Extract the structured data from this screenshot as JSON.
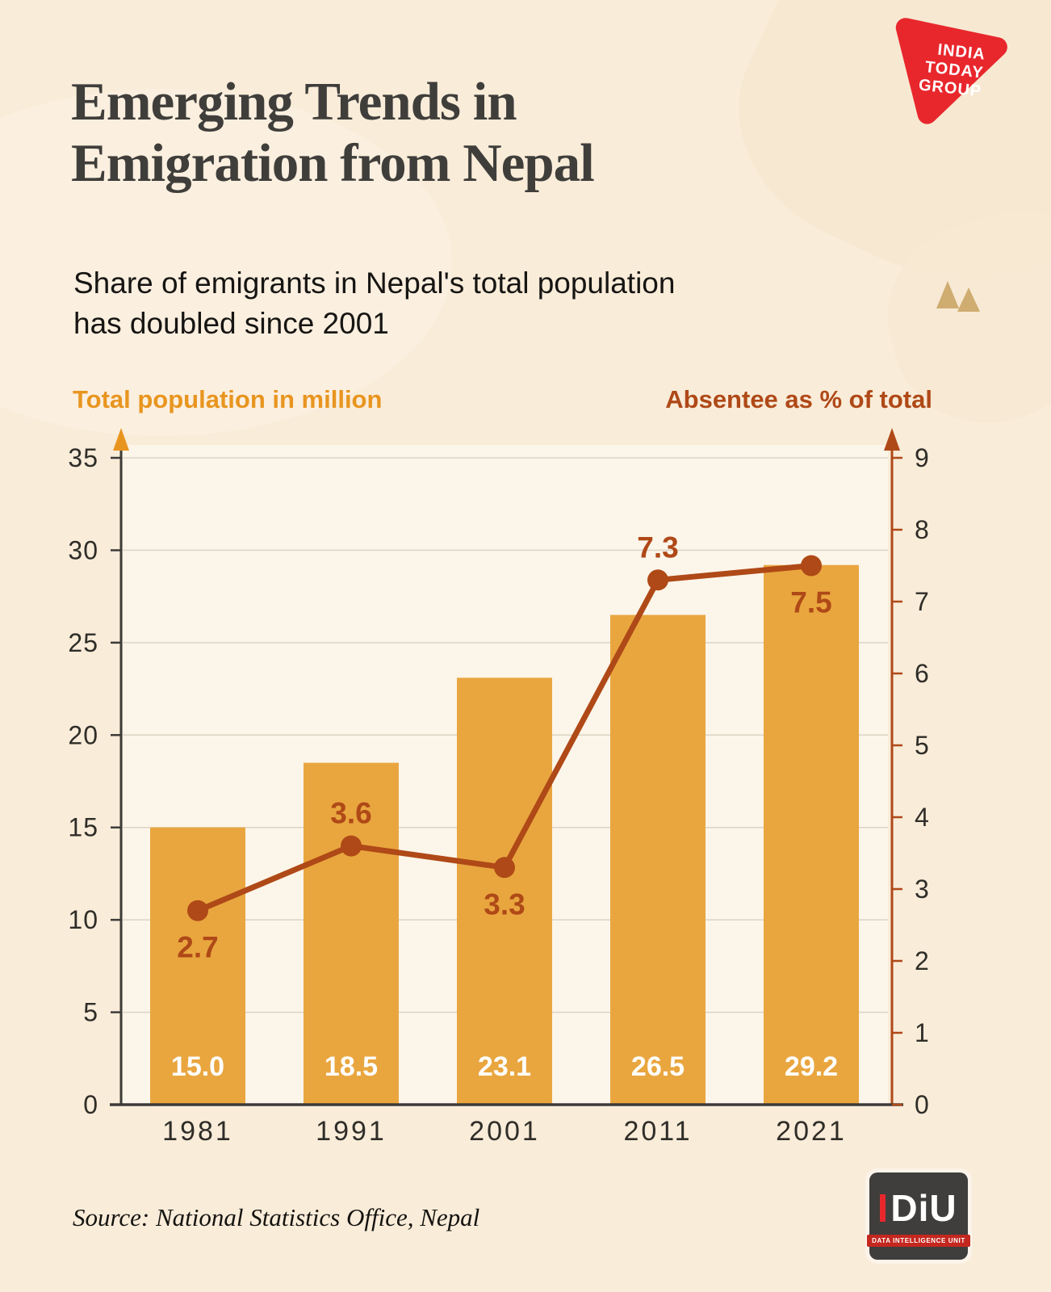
{
  "header": {
    "title_lines": [
      "Emerging Trends in",
      "Emigration from Nepal"
    ],
    "subtitle_lines": [
      "Share of emigrants in Nepal's total population",
      "has doubled since 2001"
    ]
  },
  "axes": {
    "left_title": "Total population in million",
    "right_title": "Absentee as % of total"
  },
  "footer": {
    "source": "Source: National Statistics Office, Nepal"
  },
  "logos": {
    "itg": {
      "lines": [
        "INDIA",
        "TODAY",
        "GROUP"
      ]
    },
    "diu": {
      "text": "DiU",
      "band": "DATA INTELLIGENCE UNIT"
    }
  },
  "theme": {
    "background": "#F9ECD9",
    "plot_bg": "#FCF5E9",
    "bar": "#E9A63F",
    "line": "#AF4917",
    "accent_orange": "#E8951F",
    "axis": "#3C3B38",
    "grid": "#DCD4C4",
    "tick_text": "#2F2D28",
    "bar_label": "#FFFFFF",
    "title_color": "#3F3E3B",
    "logo_red": "#E8272D",
    "logo_dark": "#3F3E3C"
  },
  "chart_data": {
    "type": "bar",
    "title": "Emerging Trends in Emigration from Nepal",
    "subtitle": "Share of emigrants in Nepal's total population has doubled since 2001",
    "categories": [
      "1981",
      "1991",
      "2001",
      "2011",
      "2021"
    ],
    "series": [
      {
        "name": "Total population in million",
        "type": "bar",
        "axis": "left",
        "values": [
          15.0,
          18.5,
          23.1,
          26.5,
          29.2
        ]
      },
      {
        "name": "Absentee as % of total",
        "type": "line",
        "axis": "right",
        "values": [
          2.7,
          3.6,
          3.3,
          7.3,
          7.5
        ],
        "label_positions": [
          "below",
          "above",
          "below",
          "above",
          "below"
        ]
      }
    ],
    "left_axis": {
      "label": "Total population in million",
      "min": 0,
      "max": 35,
      "step": 5
    },
    "right_axis": {
      "label": "Absentee as % of total",
      "min": 0,
      "max": 9,
      "step": 1
    },
    "grid": true,
    "legend_position": "none",
    "source": "Source: National Statistics Office, Nepal"
  }
}
